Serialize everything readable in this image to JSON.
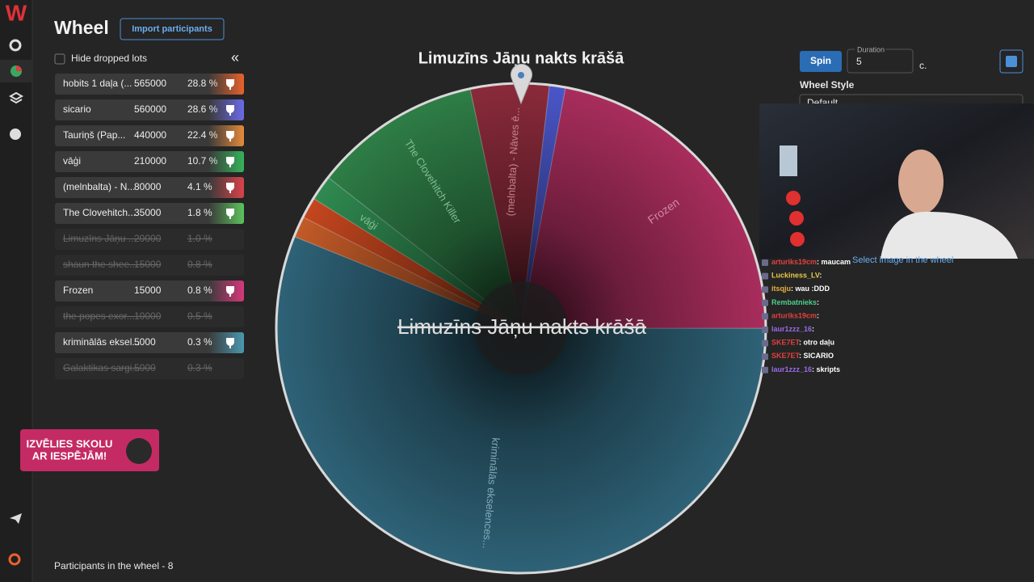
{
  "sidebar": {
    "logo": "W"
  },
  "header": {
    "title": "Wheel",
    "import_button": "Import participants"
  },
  "controls": {
    "hide_dropped": "Hide dropped lots",
    "collapse": "«"
  },
  "lots": [
    {
      "name": "hobits 1 daļa (...",
      "amount": 565000,
      "percent": "28.8 %",
      "dropped": false,
      "color": "#e8622c"
    },
    {
      "name": "sicario",
      "amount": 560000,
      "percent": "28.6 %",
      "dropped": false,
      "color": "#6b6be8"
    },
    {
      "name": "Tauriņš (Pap...",
      "amount": 440000,
      "percent": "22.4 %",
      "dropped": false,
      "color": "#e58a3a"
    },
    {
      "name": "vāģi",
      "amount": 210000,
      "percent": "10.7 %",
      "dropped": false,
      "color": "#36b35a"
    },
    {
      "name": "(melnbalta) - N...",
      "amount": 80000,
      "percent": "4.1 %",
      "dropped": false,
      "color": "#d9434a"
    },
    {
      "name": "The Clovehitch...",
      "amount": 35000,
      "percent": "1.8 %",
      "dropped": false,
      "color": "#5cc25c"
    },
    {
      "name": "Limuzīns Jāņu ...",
      "amount": 20000,
      "percent": "1.0 %",
      "dropped": true,
      "color": "#555555"
    },
    {
      "name": "shaun the shee...",
      "amount": 15000,
      "percent": "0.8 %",
      "dropped": true,
      "color": "#555555"
    },
    {
      "name": "Frozen",
      "amount": 15000,
      "percent": "0.8 %",
      "dropped": false,
      "color": "#d6397c"
    },
    {
      "name": "the popes exor...",
      "amount": 10000,
      "percent": "0.5 %",
      "dropped": true,
      "color": "#555555"
    },
    {
      "name": "kriminālās eksel...",
      "amount": 5000,
      "percent": "0.3 %",
      "dropped": false,
      "color": "#4a98b0"
    },
    {
      "name": "Galaktikas sargi...",
      "amount": 5000,
      "percent": "0.3 %",
      "dropped": true,
      "color": "#555555"
    }
  ],
  "footer": "Participants in the wheel - 8",
  "promo": {
    "line1": "IZVĒLIES SKOLU",
    "line2": "AR IESPĒJĀM!"
  },
  "wheel": {
    "winner": "Limuzīns Jāņu nakts krāšā",
    "center_text": "Limuzīns Jāņu nakts krāšā",
    "slice_labels": [
      "(melnbalta) - Nāves ē...",
      "The Clovehitch Killer",
      "vāģi",
      "Frozen",
      "kriminālās ekselences..."
    ]
  },
  "spin": {
    "button": "Spin",
    "duration_label": "Duration",
    "duration": 5,
    "unit": "c.",
    "wheel_style": "Wheel Style",
    "style_value": "Default",
    "select_image": "Select image in the wheel"
  },
  "chat": [
    {
      "user": "arturiks19cm",
      "text": ": maucam",
      "color": "#e04040"
    },
    {
      "user": "Luckiness_LV",
      "text": ":",
      "color": "#e8c84a"
    },
    {
      "user": "itsqju",
      "text": ": wau :DDD",
      "color": "#e8b040"
    },
    {
      "user": "Rembatnieks",
      "text": ":",
      "color": "#4ad08a"
    },
    {
      "user": "arturiks19cm",
      "text": ":",
      "color": "#e04040"
    },
    {
      "user": "laur1zzz_16",
      "text": ":",
      "color": "#9a6ae8"
    },
    {
      "user": "SKE7ET",
      "text": ": otro daļu",
      "color": "#e04040"
    },
    {
      "user": "SKE7ET",
      "text": ": SICARIO",
      "color": "#e04040"
    },
    {
      "user": "laur1zzz_16",
      "text": ": skripts",
      "color": "#9a6ae8"
    }
  ]
}
